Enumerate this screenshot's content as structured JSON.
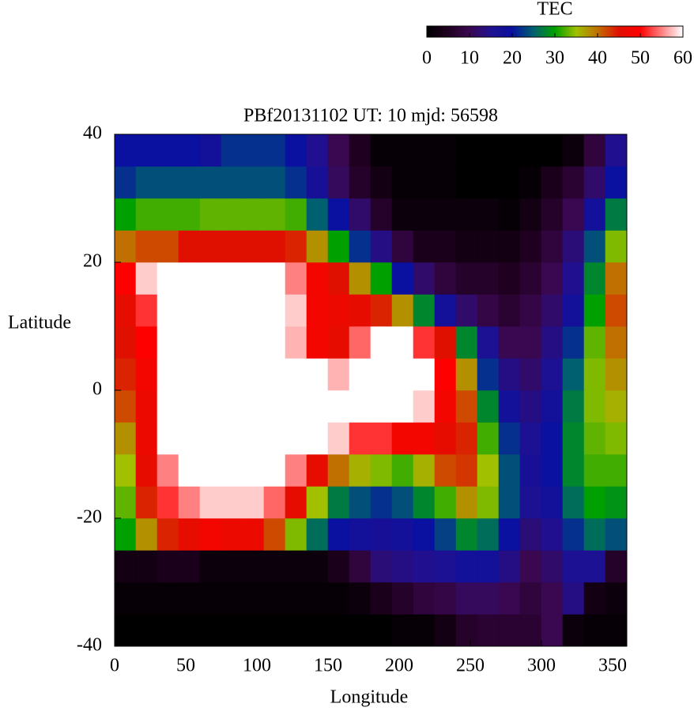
{
  "chart_data": {
    "type": "heatmap",
    "title": "PBf20131102  UT: 10  mjd: 56598",
    "xlabel": "Longitude",
    "ylabel": "Latitude",
    "xlim": [
      0,
      360
    ],
    "xticks": [
      0,
      50,
      100,
      150,
      200,
      250,
      300,
      350
    ],
    "ylim": [
      -40,
      40
    ],
    "yticks": [
      -40,
      -20,
      0,
      20,
      40
    ],
    "xbins": [
      0,
      15,
      30,
      45,
      60,
      75,
      90,
      105,
      120,
      135,
      150,
      165,
      180,
      195,
      210,
      225,
      240,
      255,
      270,
      285,
      300,
      315,
      330,
      345,
      360
    ],
    "ybins": [
      -40,
      -35,
      -30,
      -25,
      -20,
      -15,
      -10,
      -5,
      0,
      5,
      10,
      15,
      20,
      25,
      30,
      35,
      40
    ],
    "values": [
      [
        0,
        0,
        0,
        0,
        0,
        0,
        0,
        0,
        0,
        0,
        0,
        0,
        0,
        1,
        1,
        3,
        6,
        7,
        7,
        7,
        10,
        2,
        1,
        1
      ],
      [
        1,
        1,
        1,
        1,
        1,
        1,
        1,
        1,
        1,
        1,
        1,
        2,
        4,
        6,
        8,
        9,
        11,
        11,
        10,
        8,
        10,
        14,
        3,
        2
      ],
      [
        3,
        3,
        4,
        4,
        2,
        2,
        2,
        2,
        2,
        2,
        4,
        8,
        13,
        14,
        15,
        16,
        18,
        18,
        14,
        10,
        12,
        16,
        16,
        6
      ],
      [
        30,
        38,
        44,
        46,
        48,
        47,
        47,
        42,
        34,
        26,
        20,
        18,
        17,
        18,
        20,
        23,
        28,
        26,
        20,
        13,
        15,
        22,
        26,
        24
      ],
      [
        33,
        44,
        52,
        55,
        58,
        58,
        58,
        54,
        46,
        35,
        27,
        24,
        22,
        24,
        28,
        32,
        38,
        34,
        24,
        16,
        18,
        26,
        30,
        29
      ],
      [
        35,
        46,
        55,
        60,
        60,
        60,
        60,
        60,
        55,
        46,
        40,
        36,
        34,
        32,
        36,
        42,
        43,
        35,
        24,
        17,
        20,
        28,
        32,
        32
      ],
      [
        38,
        47,
        60,
        60,
        60,
        60,
        60,
        60,
        60,
        60,
        58,
        52,
        52,
        48,
        48,
        46,
        44,
        32,
        22,
        16,
        20,
        28,
        33,
        34
      ],
      [
        42,
        47,
        60,
        60,
        60,
        60,
        60,
        60,
        60,
        60,
        60,
        60,
        60,
        60,
        58,
        48,
        42,
        28,
        18,
        14,
        18,
        27,
        34,
        36
      ],
      [
        44,
        48,
        60,
        60,
        60,
        60,
        60,
        60,
        60,
        60,
        57,
        60,
        60,
        60,
        60,
        50,
        38,
        22,
        14,
        12,
        16,
        25,
        34,
        38
      ],
      [
        45,
        50,
        60,
        60,
        60,
        60,
        60,
        60,
        57,
        48,
        46,
        54,
        60,
        60,
        52,
        45,
        28,
        16,
        10,
        10,
        14,
        22,
        33,
        40
      ],
      [
        46,
        52,
        60,
        60,
        60,
        60,
        60,
        60,
        58,
        48,
        47,
        46,
        44,
        38,
        28,
        18,
        12,
        9,
        7,
        9,
        12,
        18,
        30,
        42
      ],
      [
        50,
        58,
        60,
        60,
        60,
        60,
        60,
        60,
        55,
        48,
        45,
        38,
        30,
        20,
        12,
        8,
        6,
        6,
        5,
        7,
        10,
        15,
        28,
        40
      ],
      [
        40,
        42,
        42,
        45,
        45,
        45,
        45,
        45,
        44,
        38,
        30,
        22,
        14,
        8,
        4,
        4,
        3,
        3,
        3,
        5,
        8,
        13,
        24,
        34
      ],
      [
        30,
        32,
        32,
        32,
        33,
        33,
        33,
        33,
        32,
        25,
        20,
        12,
        6,
        2,
        2,
        2,
        2,
        2,
        1,
        3,
        6,
        10,
        18,
        27
      ],
      [
        22,
        24,
        24,
        24,
        24,
        24,
        24,
        24,
        22,
        17,
        11,
        6,
        3,
        1,
        1,
        1,
        0,
        0,
        0,
        1,
        4,
        7,
        12,
        20
      ],
      [
        20,
        20,
        20,
        20,
        18,
        22,
        22,
        22,
        20,
        15,
        10,
        5,
        1,
        1,
        1,
        1,
        0,
        0,
        0,
        0,
        0,
        2,
        8,
        15
      ]
    ],
    "colorbar_label": "TEC",
    "zlim": [
      0,
      60
    ],
    "zticks": [
      0,
      10,
      20,
      30,
      40,
      50,
      60
    ],
    "colormap": [
      "#000000",
      "#200020",
      "#3a0850",
      "#201090",
      "#0a10a0",
      "#006070",
      "#00a000",
      "#a0c000",
      "#c07000",
      "#e01000",
      "#ff0000",
      "#ff8080",
      "#ffffff"
    ]
  }
}
